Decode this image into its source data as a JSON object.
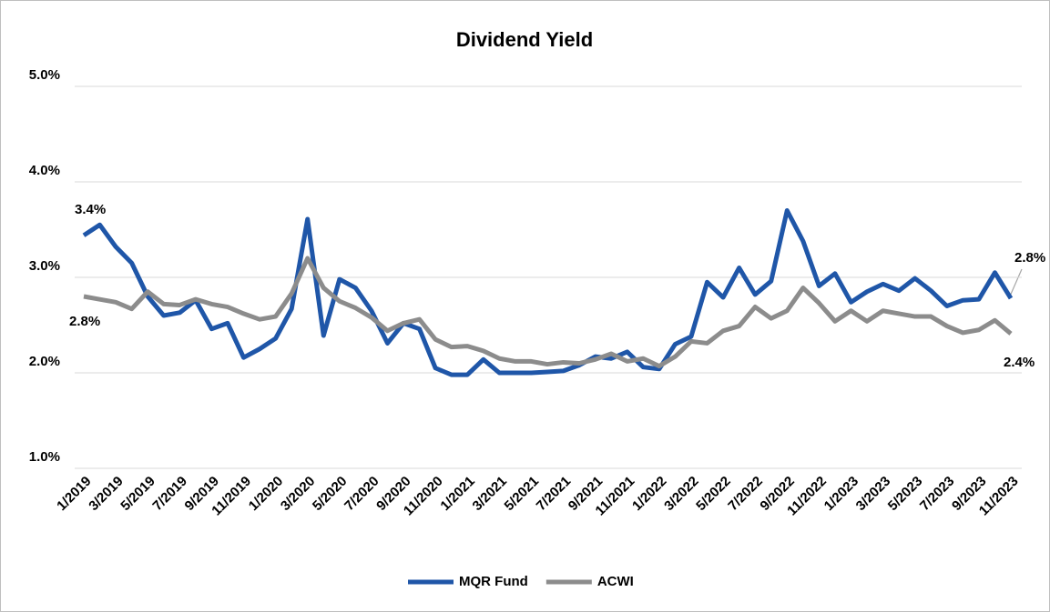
{
  "chart_data": {
    "type": "line",
    "title": "Dividend Yield",
    "categories": [
      "1/2019",
      null,
      "3/2019",
      null,
      "5/2019",
      null,
      "7/2019",
      null,
      "9/2019",
      null,
      "11/2019",
      null,
      "1/2020",
      null,
      "3/2020",
      null,
      "5/2020",
      null,
      "7/2020",
      null,
      "9/2020",
      null,
      "11/2020",
      null,
      "1/2021",
      null,
      "3/2021",
      null,
      "5/2021",
      null,
      "7/2021",
      null,
      "9/2021",
      null,
      "11/2021",
      null,
      "1/2022",
      null,
      "3/2022",
      null,
      "5/2022",
      null,
      "7/2022",
      null,
      "9/2022",
      null,
      "11/2022",
      null,
      "1/2023",
      null,
      "3/2023",
      null,
      "5/2023",
      null,
      "7/2023",
      null,
      "9/2023",
      null,
      "11/2023"
    ],
    "series": [
      {
        "name": "MQR Fund",
        "color": "#1f56a8",
        "values": [
          3.44,
          3.55,
          3.32,
          3.15,
          2.8,
          2.6,
          2.63,
          2.76,
          2.46,
          2.52,
          2.16,
          2.25,
          2.36,
          2.67,
          3.61,
          2.39,
          2.98,
          2.89,
          2.65,
          2.31,
          2.52,
          2.46,
          2.05,
          1.98,
          1.98,
          2.14,
          2.0,
          2.0,
          2.0,
          2.01,
          2.02,
          2.08,
          2.17,
          2.15,
          2.22,
          2.06,
          2.04,
          2.3,
          2.38,
          2.95,
          2.79,
          3.1,
          2.82,
          2.96,
          3.7,
          3.38,
          2.91,
          3.04,
          2.74,
          2.85,
          2.93,
          2.86,
          2.99,
          2.86,
          2.7,
          2.76,
          2.77,
          3.05,
          2.78
        ],
        "value_labels": [
          "3.4%",
          null,
          null,
          null,
          null,
          null,
          null,
          null,
          null,
          null,
          null,
          null,
          null,
          null,
          null,
          null,
          null,
          null,
          null,
          null,
          null,
          null,
          null,
          null,
          null,
          null,
          null,
          null,
          null,
          null,
          null,
          null,
          null,
          null,
          null,
          null,
          null,
          null,
          null,
          null,
          null,
          null,
          null,
          null,
          null,
          null,
          null,
          null,
          null,
          null,
          null,
          null,
          null,
          null,
          null,
          null,
          null,
          null,
          "2.8%"
        ]
      },
      {
        "name": "ACWI",
        "color": "#8c8c8c",
        "values": [
          2.8,
          2.77,
          2.74,
          2.67,
          2.85,
          2.72,
          2.71,
          2.77,
          2.72,
          2.69,
          2.62,
          2.56,
          2.59,
          2.83,
          3.2,
          2.89,
          2.75,
          2.68,
          2.58,
          2.44,
          2.52,
          2.56,
          2.35,
          2.27,
          2.28,
          2.23,
          2.15,
          2.12,
          2.12,
          2.09,
          2.11,
          2.1,
          2.14,
          2.2,
          2.12,
          2.15,
          2.07,
          2.17,
          2.33,
          2.31,
          2.44,
          2.49,
          2.69,
          2.57,
          2.65,
          2.89,
          2.73,
          2.54,
          2.65,
          2.54,
          2.65,
          2.62,
          2.59,
          2.59,
          2.49,
          2.42,
          2.45,
          2.55,
          2.41
        ],
        "value_labels": [
          "2.8%",
          null,
          null,
          null,
          null,
          null,
          null,
          null,
          null,
          null,
          null,
          null,
          null,
          null,
          null,
          null,
          null,
          null,
          null,
          null,
          null,
          null,
          null,
          null,
          null,
          null,
          null,
          null,
          null,
          null,
          null,
          null,
          null,
          null,
          null,
          null,
          null,
          null,
          null,
          null,
          null,
          null,
          null,
          null,
          null,
          null,
          null,
          null,
          null,
          null,
          null,
          null,
          null,
          null,
          null,
          null,
          null,
          null,
          "2.4%"
        ]
      }
    ],
    "ylim": [
      1.0,
      5.0
    ],
    "yticks": [
      {
        "value": 1.0,
        "label": "1.0%"
      },
      {
        "value": 2.0,
        "label": "2.0%"
      },
      {
        "value": 3.0,
        "label": "3.0%"
      },
      {
        "value": 4.0,
        "label": "4.0%"
      },
      {
        "value": 5.0,
        "label": "5.0%"
      }
    ],
    "grid": true,
    "legend": "bottom"
  }
}
